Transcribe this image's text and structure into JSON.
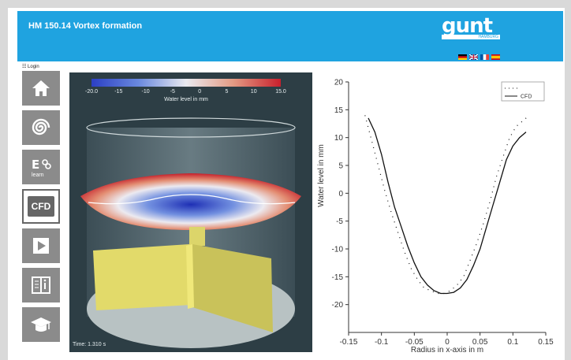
{
  "header": {
    "title": "HM 150.14 Vortex formation",
    "logo_text": "gunt",
    "logo_sub": "HAMBURG"
  },
  "sidebar": {
    "login_label": "Login",
    "items": [
      {
        "name": "home",
        "icon": "home-icon"
      },
      {
        "name": "vortex",
        "icon": "spiral-icon"
      },
      {
        "name": "elearning",
        "icon": "elearning-icon",
        "label": "learn"
      },
      {
        "name": "cfd",
        "icon": "cfd-icon",
        "label": "CFD",
        "active": true
      },
      {
        "name": "play",
        "icon": "play-icon"
      },
      {
        "name": "manual",
        "icon": "book-icon"
      },
      {
        "name": "education",
        "icon": "graduation-cap-icon"
      }
    ]
  },
  "simulation": {
    "colorbar_ticks": [
      "-20.0",
      "-15",
      "-10",
      "-5",
      "0",
      "5",
      "10",
      "15.0"
    ],
    "colorbar_label": "Water level in mm",
    "time_label": "Time: 1.310 s"
  },
  "chart_data": {
    "type": "line",
    "xlabel": "Radius in x-axis in m",
    "ylabel": "Water level in mm",
    "xlim": [
      -0.15,
      0.15
    ],
    "ylim": [
      -25,
      20
    ],
    "x_ticks": [
      "-0.15",
      "-0.1",
      "-0.05",
      "0",
      "0.05",
      "0.1",
      "0.15"
    ],
    "y_ticks": [
      "20",
      "15",
      "10",
      "5",
      "0",
      "-5",
      "-10",
      "-15",
      "-20"
    ],
    "legend": [
      "",
      "CFD"
    ],
    "legend_position": "top-right",
    "series": [
      {
        "name": "CFD",
        "style": "solid",
        "x": [
          -0.12,
          -0.11,
          -0.1,
          -0.09,
          -0.08,
          -0.07,
          -0.06,
          -0.05,
          -0.04,
          -0.03,
          -0.02,
          -0.01,
          0,
          0.01,
          0.02,
          0.03,
          0.04,
          0.05,
          0.06,
          0.07,
          0.08,
          0.09,
          0.1,
          0.11,
          0.12
        ],
        "y": [
          13.5,
          11,
          7,
          2,
          -2.5,
          -6,
          -9.5,
          -12.5,
          -15,
          -16.5,
          -17.5,
          -18,
          -18,
          -17.8,
          -17,
          -15.5,
          -13,
          -10,
          -6,
          -2,
          2,
          6,
          8.5,
          10,
          11
        ]
      },
      {
        "name": "",
        "style": "dotted",
        "x": [
          -0.125,
          -0.115,
          -0.105,
          -0.095,
          -0.085,
          -0.075,
          -0.065,
          -0.055,
          -0.045,
          -0.035,
          -0.025,
          -0.015,
          -0.005,
          0.005,
          0.015,
          0.025,
          0.035,
          0.045,
          0.055,
          0.065,
          0.075,
          0.085,
          0.095,
          0.105,
          0.115,
          0.125
        ],
        "y": [
          14,
          9.5,
          5,
          0.5,
          -3.5,
          -7,
          -10.5,
          -13.5,
          -15.5,
          -17,
          -17.5,
          -18,
          -18,
          -17.5,
          -16.5,
          -15,
          -12,
          -9,
          -5.5,
          -1.5,
          3,
          6.5,
          10,
          12,
          13,
          14
        ]
      }
    ]
  }
}
